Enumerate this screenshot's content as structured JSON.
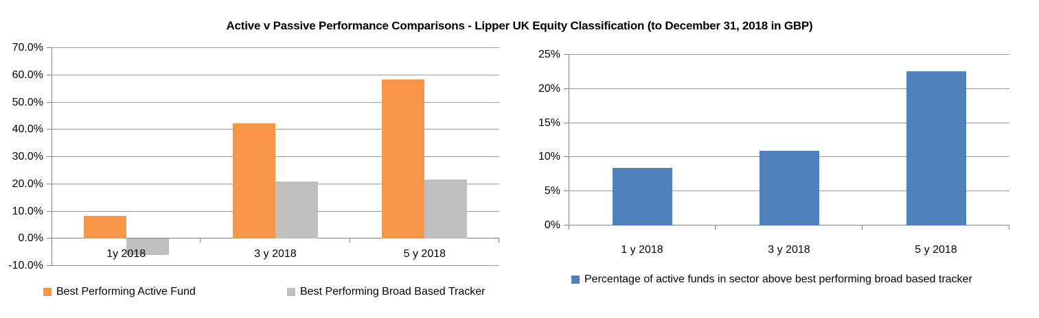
{
  "title": "Active v Passive Performance Comparisons - Lipper UK Equity Classification (to December 31, 2018 in GBP)",
  "colors": {
    "active_fund": "#F79646",
    "tracker": "#BFBFBF",
    "percentage": "#4F81BD",
    "gridline": "#9a9a9a",
    "axis": "#808080"
  },
  "chart_data": [
    {
      "type": "bar",
      "name": "active-vs-passive-returns",
      "categories": [
        "1y 2018",
        "3 y 2018",
        "5 y 2018"
      ],
      "series": [
        {
          "name": "Best Performing Active Fund",
          "color": "#F79646",
          "values": [
            8.4,
            42.3,
            58.4
          ]
        },
        {
          "name": "Best Performing Broad Based Tracker",
          "color": "#BFBFBF",
          "values": [
            -6.0,
            21.0,
            21.6
          ]
        }
      ],
      "ylim": [
        -10,
        70
      ],
      "yticks": [
        {
          "value": 70,
          "label": "70.0%"
        },
        {
          "value": 60,
          "label": "60.0%"
        },
        {
          "value": 50,
          "label": "50.0%"
        },
        {
          "value": 40,
          "label": "40.0%"
        },
        {
          "value": 30,
          "label": "30.0%"
        },
        {
          "value": 20,
          "label": "20.0%"
        },
        {
          "value": 10,
          "label": "10.0%"
        },
        {
          "value": 0,
          "label": "0.0%"
        },
        {
          "value": -10,
          "label": "-10.0%"
        }
      ],
      "grid": true,
      "legend_position": "bottom"
    },
    {
      "type": "bar",
      "name": "pct-active-funds-above-tracker",
      "categories": [
        "1 y 2018",
        "3 y 2018",
        "5 y 2018"
      ],
      "series": [
        {
          "name": "Percentage of active funds in sector above best performing broad based tracker",
          "color": "#4F81BD",
          "values": [
            8.4,
            10.9,
            22.6
          ]
        }
      ],
      "ylim": [
        0,
        25
      ],
      "yticks": [
        {
          "value": 25,
          "label": "25%"
        },
        {
          "value": 20,
          "label": "20%"
        },
        {
          "value": 15,
          "label": "15%"
        },
        {
          "value": 10,
          "label": "10%"
        },
        {
          "value": 5,
          "label": "5%"
        },
        {
          "value": 0,
          "label": "0%"
        }
      ],
      "grid": true,
      "legend_position": "bottom"
    }
  ]
}
